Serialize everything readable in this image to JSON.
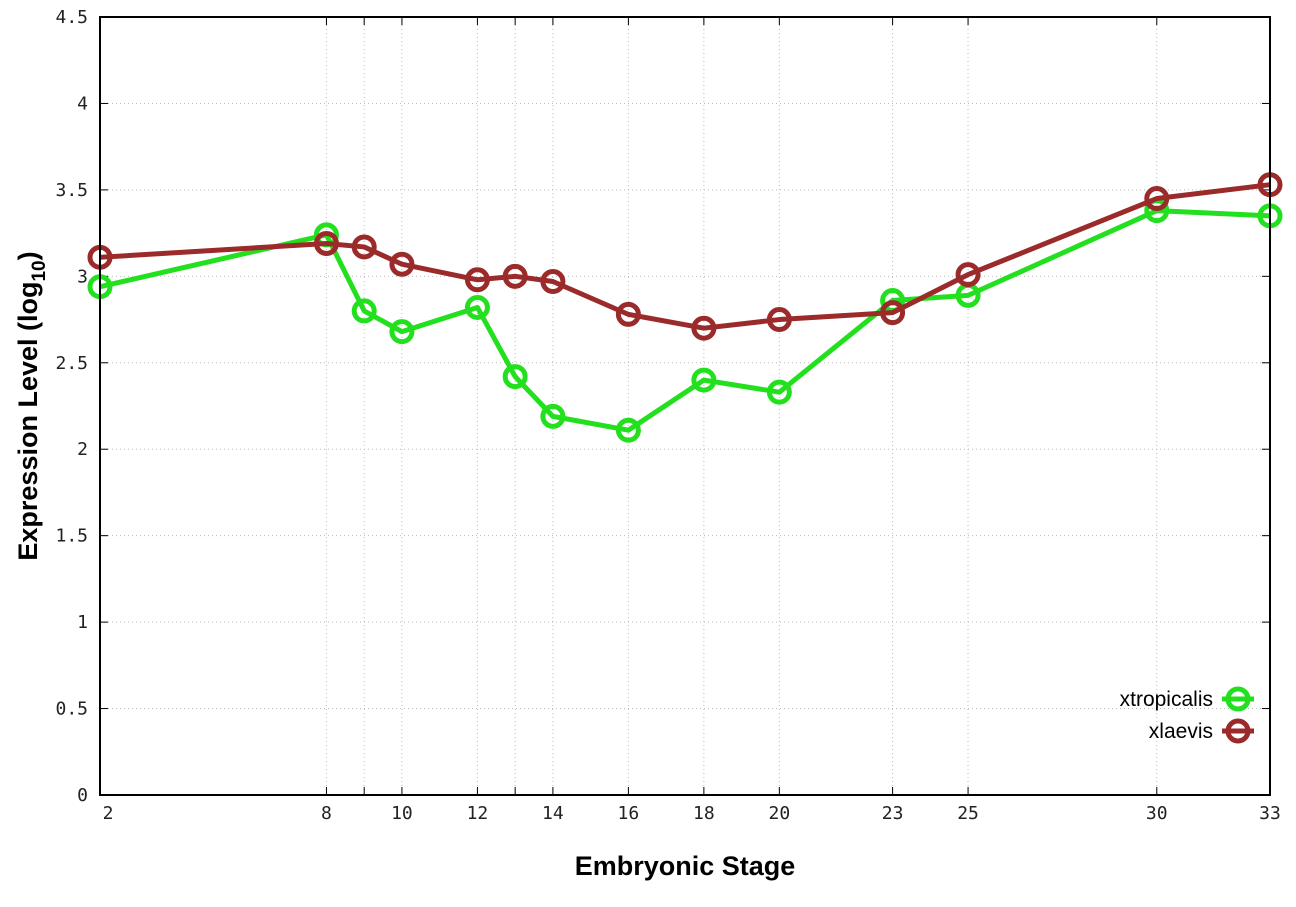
{
  "chart_data": {
    "type": "line",
    "title": "",
    "xlabel": "Embryonic Stage",
    "ylabel": "Expression Level (log10)",
    "ylabel_main": "Expression Level (log",
    "ylabel_sub": "10",
    "ylabel_close": ")",
    "xlim": [
      2,
      33
    ],
    "ylim": [
      0,
      4.5
    ],
    "x_ticks": [
      2,
      8,
      10,
      12,
      14,
      16,
      18,
      20,
      23,
      25,
      30,
      33
    ],
    "x_gridlines": [
      2,
      8,
      9,
      10,
      12,
      13,
      14,
      16,
      18,
      20,
      23,
      25,
      30,
      33
    ],
    "y_ticks": [
      0,
      0.5,
      1,
      1.5,
      2,
      2.5,
      3,
      3.5,
      4,
      4.5
    ],
    "y_tick_labels": [
      "0",
      "0.5",
      "1",
      "1.5",
      "2",
      "2.5",
      "3",
      "3.5",
      "4",
      "4.5"
    ],
    "grid": true,
    "legend_position": "bottom-right",
    "x": [
      2,
      8,
      9,
      10,
      12,
      13,
      14,
      16,
      18,
      20,
      23,
      25,
      30,
      33
    ],
    "series": [
      {
        "name": "xtropicalis",
        "color": "#22e01e",
        "values": [
          2.94,
          3.24,
          2.8,
          2.68,
          2.82,
          2.42,
          2.19,
          2.11,
          2.4,
          2.33,
          2.86,
          2.89,
          3.38,
          3.35
        ]
      },
      {
        "name": "xlaevis",
        "color": "#9b2a2a",
        "values": [
          3.11,
          3.19,
          3.17,
          3.07,
          2.98,
          3.0,
          2.97,
          2.78,
          2.7,
          2.75,
          2.79,
          3.01,
          3.45,
          3.53
        ]
      }
    ]
  }
}
